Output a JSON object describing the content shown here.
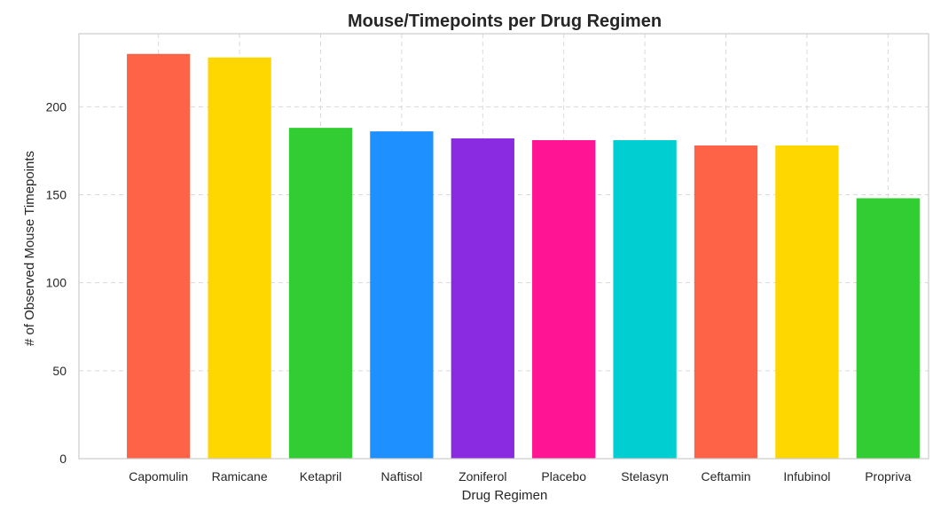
{
  "chart_data": {
    "type": "bar",
    "title": "Mouse/Timepoints per Drug Regimen",
    "xlabel": "Drug Regimen",
    "ylabel": "# of Observed Mouse Timepoints",
    "categories": [
      "Capomulin",
      "Ramicane",
      "Ketapril",
      "Naftisol",
      "Zoniferol",
      "Placebo",
      "Stelasyn",
      "Ceftamin",
      "Infubinol",
      "Propriva"
    ],
    "values": [
      230,
      228,
      188,
      186,
      182,
      181,
      181,
      178,
      178,
      148
    ],
    "colors": [
      "#ff6347",
      "#ffd700",
      "#32cd32",
      "#1e90ff",
      "#8a2be2",
      "#ff1493",
      "#00ced1",
      "#ff6347",
      "#ffd700",
      "#32cd32"
    ],
    "ylim": [
      0,
      241.5
    ],
    "yticks": [
      0,
      50,
      100,
      150,
      200
    ],
    "grid": true,
    "legend": "none"
  }
}
